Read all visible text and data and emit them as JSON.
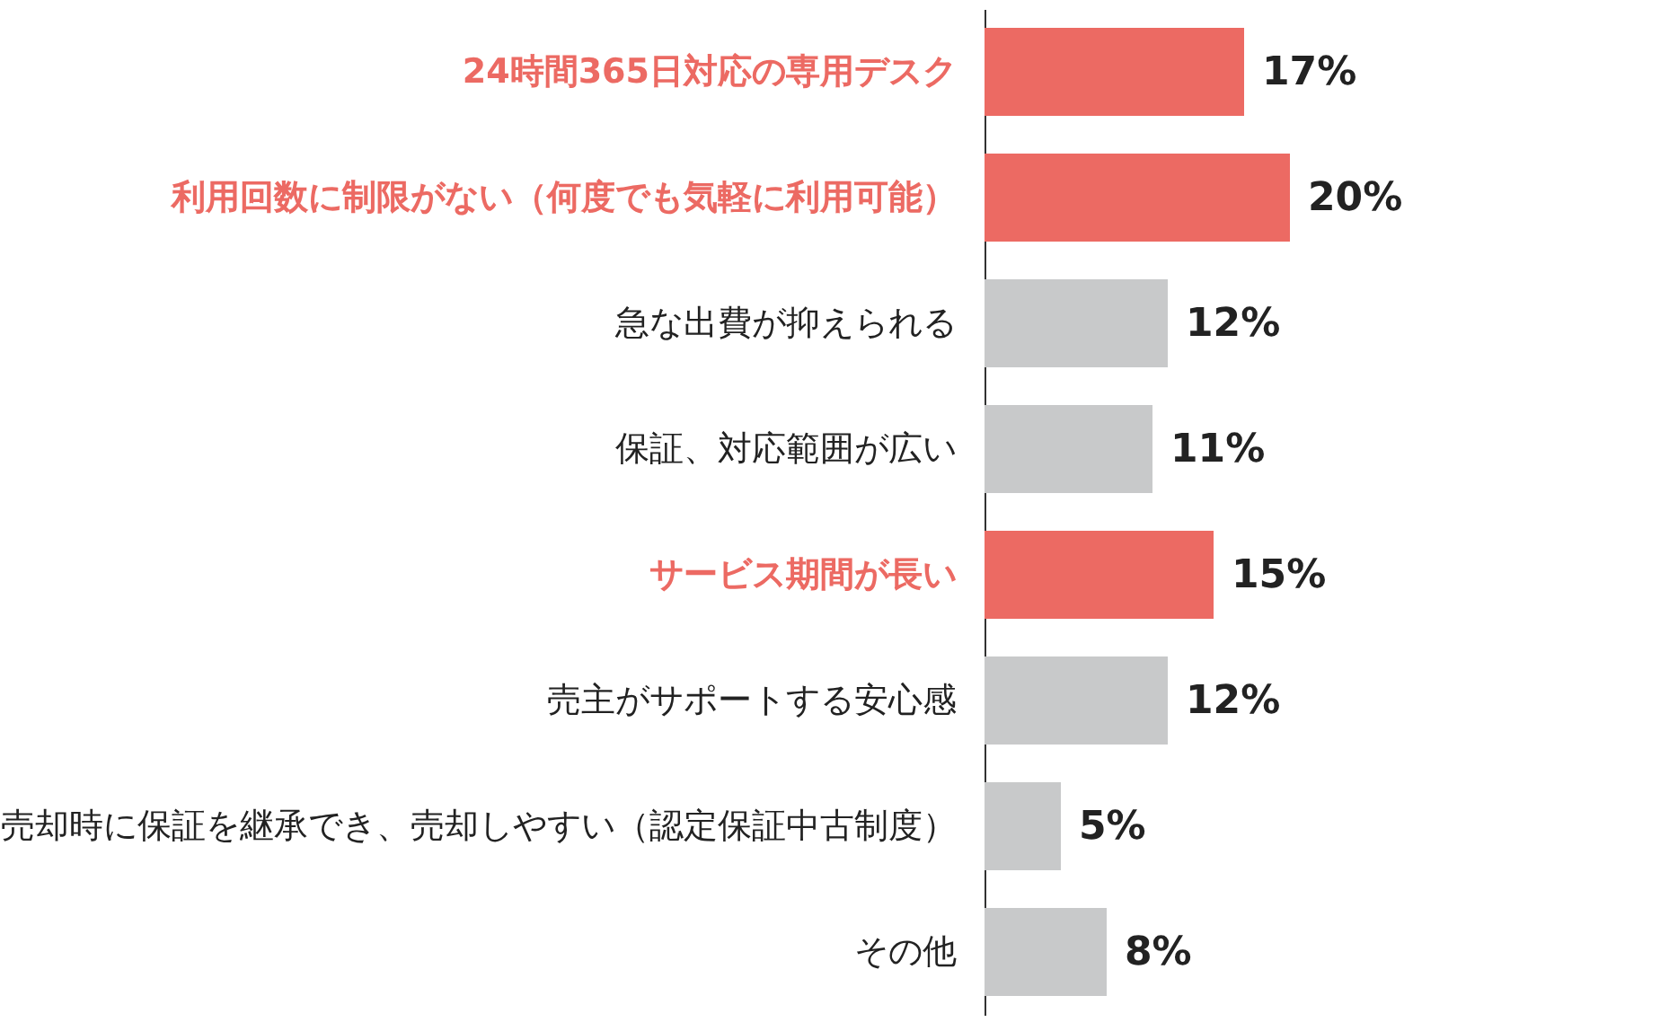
{
  "chart_data": {
    "type": "bar",
    "orientation": "horizontal",
    "categories": [
      "24時間365日対応の専用デスク",
      "利用回数に制限がない（何度でも気軽に利用可能）",
      "急な出費が抑えられる",
      "保証、対応範囲が広い",
      "サービス期間が長い",
      "売主がサポートする安心感",
      "売却時に保証を継承でき、売却しやすい（認定保証中古制度）",
      "その他"
    ],
    "values": [
      17,
      20,
      12,
      11,
      15,
      12,
      5,
      8
    ],
    "value_labels": [
      "17%",
      "20%",
      "12%",
      "11%",
      "15%",
      "12%",
      "5%",
      "8%"
    ],
    "colors": [
      "#ec6a63",
      "#ec6a63",
      "#c8c9ca",
      "#c8c9ca",
      "#ec6a63",
      "#c8c9ca",
      "#c8c9ca",
      "#c8c9ca"
    ]
  }
}
